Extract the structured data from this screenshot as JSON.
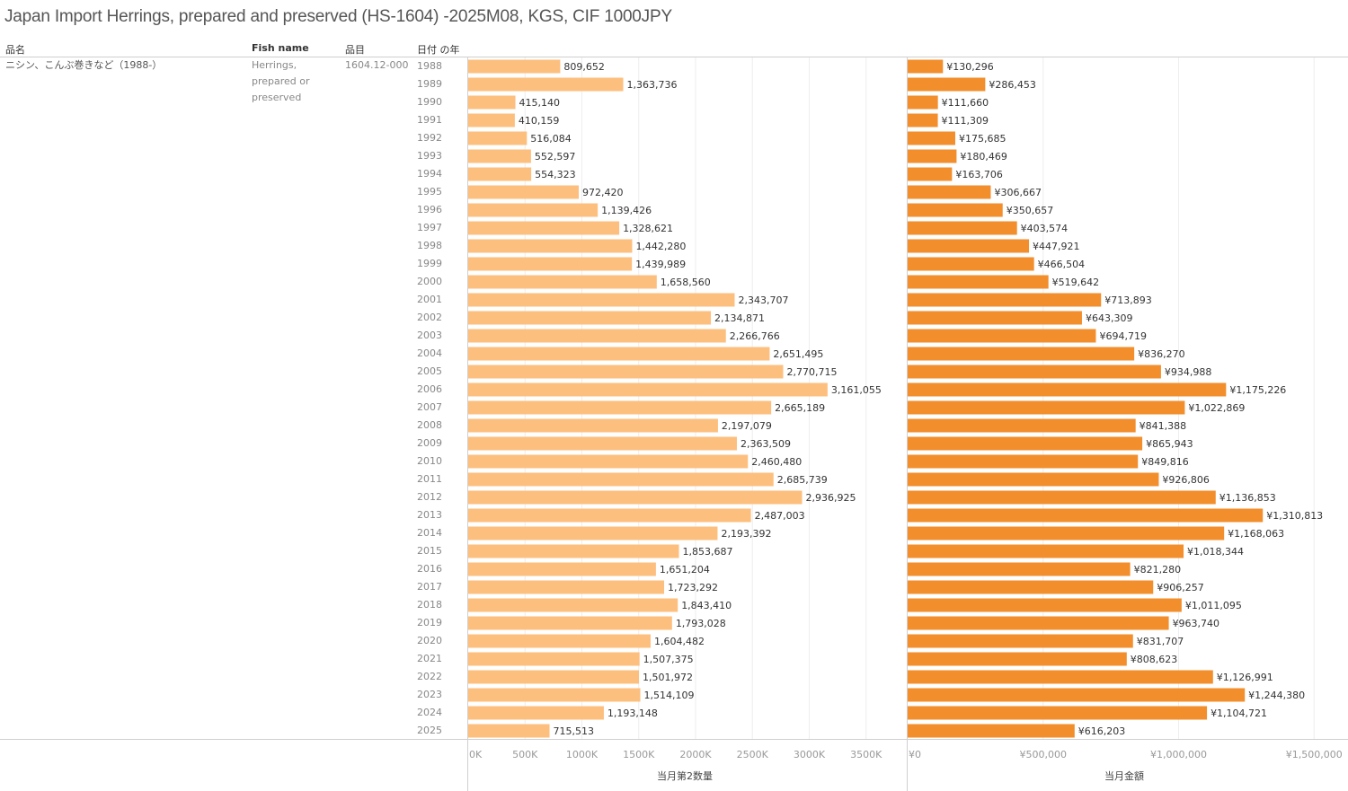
{
  "title": "Japan Import Herrings, prepared and preserved (HS-1604) -2025M08, KGS, CIF 1000JPY",
  "headers": {
    "product_name_jp": "品名",
    "fish_name": "Fish name",
    "item_code": "品目",
    "year": "日付 の年"
  },
  "row": {
    "product_name_jp": "ニシン、こんぶ巻きなど（1988-）",
    "fish_name_lines": [
      "Herrings,",
      "prepared or",
      "preserved"
    ],
    "item_code": "1604.12-000"
  },
  "colors": {
    "quantity": "#FDBF7E",
    "amount": "#F28E2B"
  },
  "chart_data": [
    {
      "type": "bar",
      "orientation": "horizontal",
      "xlabel": "当月第2数量",
      "ylabel": "日付 の年",
      "xlim": [
        0,
        3800000
      ],
      "tick_values": [
        0,
        500000,
        1000000,
        1500000,
        2000000,
        2500000,
        3000000,
        3500000
      ],
      "tick_labels": [
        "0K",
        "500K",
        "1000K",
        "1500K",
        "2000K",
        "2500K",
        "3000K",
        "3500K"
      ],
      "grid": true,
      "categories": [
        "1988",
        "1989",
        "1990",
        "1991",
        "1992",
        "1993",
        "1994",
        "1995",
        "1996",
        "1997",
        "1998",
        "1999",
        "2000",
        "2001",
        "2002",
        "2003",
        "2004",
        "2005",
        "2006",
        "2007",
        "2008",
        "2009",
        "2010",
        "2011",
        "2012",
        "2013",
        "2014",
        "2015",
        "2016",
        "2017",
        "2018",
        "2019",
        "2020",
        "2021",
        "2022",
        "2023",
        "2024",
        "2025"
      ],
      "values": [
        809652,
        1363736,
        415140,
        410159,
        516084,
        552597,
        554323,
        972420,
        1139426,
        1328621,
        1442280,
        1439989,
        1658560,
        2343707,
        2134871,
        2266766,
        2651495,
        2770715,
        3161055,
        2665189,
        2197079,
        2363509,
        2460480,
        2685739,
        2936925,
        2487003,
        2193392,
        1853687,
        1651204,
        1723292,
        1843410,
        1793028,
        1604482,
        1507375,
        1501972,
        1514109,
        1193148,
        715513
      ],
      "labels": [
        "809,652",
        "1,363,736",
        "415,140",
        "410,159",
        "516,084",
        "552,597",
        "554,323",
        "972,420",
        "1,139,426",
        "1,328,621",
        "1,442,280",
        "1,439,989",
        "1,658,560",
        "2,343,707",
        "2,134,871",
        "2,266,766",
        "2,651,495",
        "2,770,715",
        "3,161,055",
        "2,665,189",
        "2,197,079",
        "2,363,509",
        "2,460,480",
        "2,685,739",
        "2,936,925",
        "2,487,003",
        "2,193,392",
        "1,853,687",
        "1,651,204",
        "1,723,292",
        "1,843,410",
        "1,793,028",
        "1,604,482",
        "1,507,375",
        "1,501,972",
        "1,514,109",
        "1,193,148",
        "715,513"
      ]
    },
    {
      "type": "bar",
      "orientation": "horizontal",
      "xlabel": "当月金額",
      "xlim": [
        0,
        1620000
      ],
      "tick_values": [
        0,
        500000,
        1000000,
        1500000
      ],
      "tick_labels": [
        "¥0",
        "¥500,000",
        "¥1,000,000",
        "¥1,500,000"
      ],
      "grid": true,
      "values": [
        130296,
        286453,
        111660,
        111309,
        175685,
        180469,
        163706,
        306667,
        350657,
        403574,
        447921,
        466504,
        519642,
        713893,
        643309,
        694719,
        836270,
        934988,
        1175226,
        1022869,
        841388,
        865943,
        849816,
        926806,
        1136853,
        1310813,
        1168063,
        1018344,
        821280,
        906257,
        1011095,
        963740,
        831707,
        808623,
        1126991,
        1244380,
        1104721,
        616203
      ],
      "labels": [
        "¥130,296",
        "¥286,453",
        "¥111,660",
        "¥111,309",
        "¥175,685",
        "¥180,469",
        "¥163,706",
        "¥306,667",
        "¥350,657",
        "¥403,574",
        "¥447,921",
        "¥466,504",
        "¥519,642",
        "¥713,893",
        "¥643,309",
        "¥694,719",
        "¥836,270",
        "¥934,988",
        "¥1,175,226",
        "¥1,022,869",
        "¥841,388",
        "¥865,943",
        "¥849,816",
        "¥926,806",
        "¥1,136,853",
        "¥1,310,813",
        "¥1,168,063",
        "¥1,018,344",
        "¥821,280",
        "¥906,257",
        "¥1,011,095",
        "¥963,740",
        "¥831,707",
        "¥808,623",
        "¥1,126,991",
        "¥1,244,380",
        "¥1,104,721",
        "¥616,203"
      ]
    }
  ]
}
